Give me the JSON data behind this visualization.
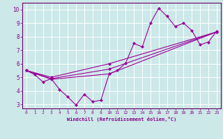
{
  "xlabel": "Windchill (Refroidissement éolien,°C)",
  "bg_color": "#cce8e8",
  "grid_color": "#ffffff",
  "line_color": "#990099",
  "marker": "D",
  "markersize": 2.2,
  "linewidth": 0.8,
  "xlim": [
    -0.5,
    23.5
  ],
  "ylim": [
    2.7,
    10.5
  ],
  "xticks": [
    0,
    1,
    2,
    3,
    4,
    5,
    6,
    7,
    8,
    9,
    10,
    11,
    12,
    13,
    14,
    15,
    16,
    17,
    18,
    19,
    20,
    21,
    22,
    23
  ],
  "yticks": [
    3,
    4,
    5,
    6,
    7,
    8,
    9,
    10
  ],
  "lines": [
    {
      "x": [
        0,
        1,
        2,
        3,
        4,
        5,
        6,
        7,
        8,
        9,
        10,
        11,
        12,
        13,
        14,
        15,
        16,
        17,
        18,
        19,
        20,
        21,
        22,
        23
      ],
      "y": [
        5.5,
        5.2,
        4.65,
        4.9,
        4.1,
        3.55,
        2.95,
        3.75,
        3.2,
        3.3,
        5.25,
        5.5,
        6.05,
        7.5,
        7.25,
        9.0,
        10.1,
        9.5,
        8.75,
        9.0,
        8.45,
        7.4,
        7.6,
        8.4
      ]
    },
    {
      "x": [
        0,
        3,
        10,
        23
      ],
      "y": [
        5.5,
        5.0,
        6.0,
        8.35
      ]
    },
    {
      "x": [
        0,
        3,
        10,
        23
      ],
      "y": [
        5.5,
        4.9,
        5.6,
        8.35
      ]
    },
    {
      "x": [
        0,
        3,
        10,
        23
      ],
      "y": [
        5.5,
        4.85,
        5.25,
        8.35
      ]
    }
  ]
}
